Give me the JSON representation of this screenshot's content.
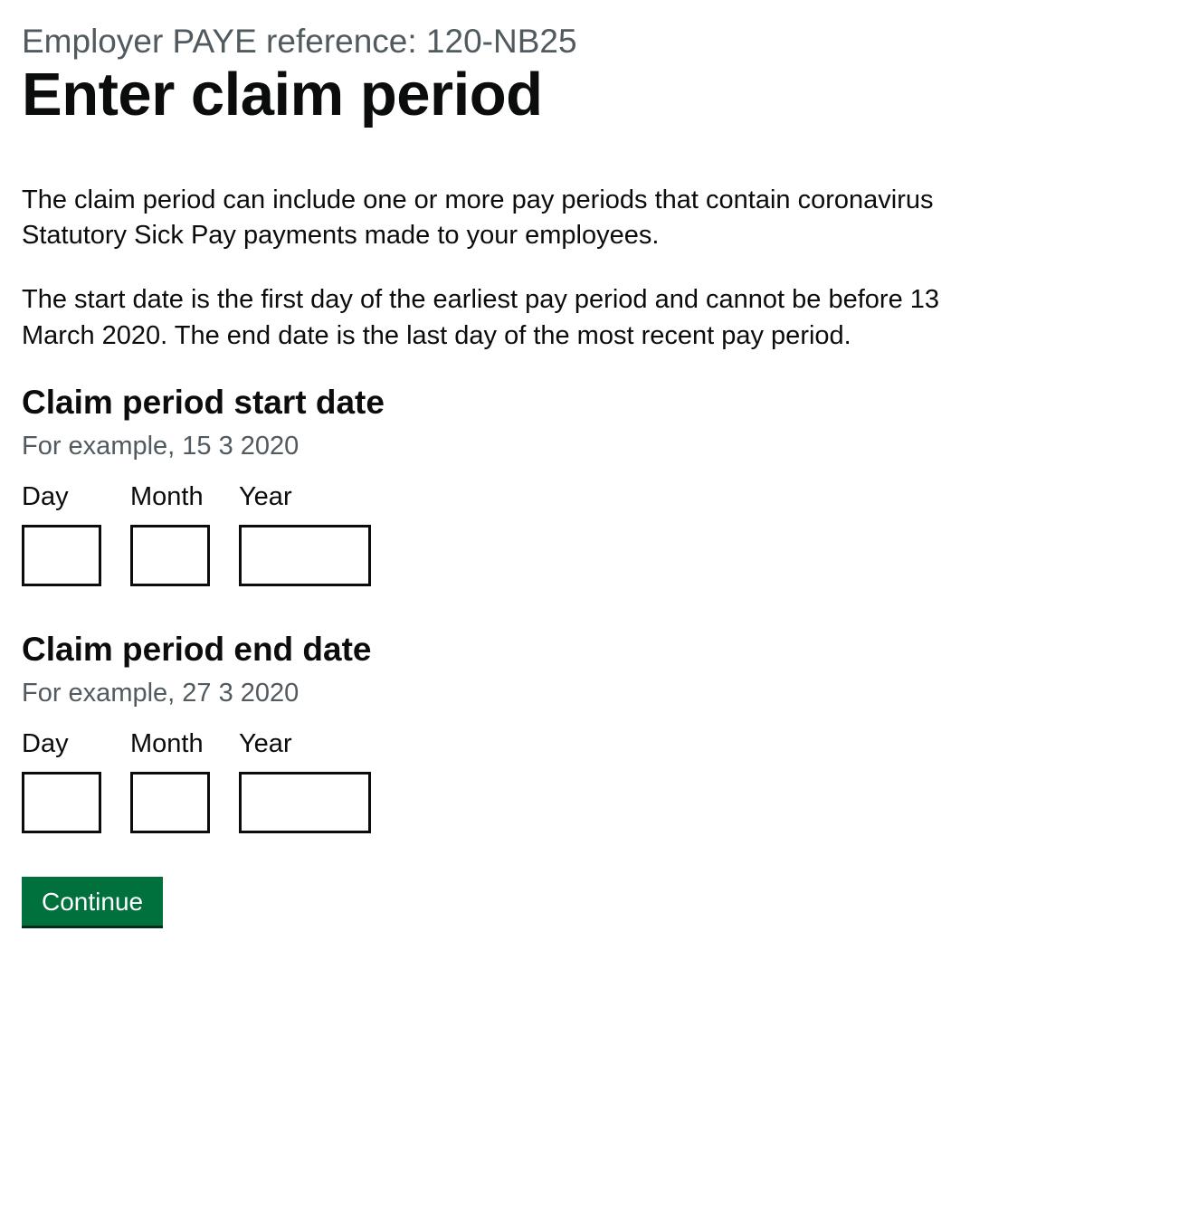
{
  "colors": {
    "text_primary": "#0b0c0c",
    "text_secondary": "#505a5f",
    "button_bg": "#00703c",
    "button_shadow": "#002d18",
    "button_text": "#ffffff",
    "input_border": "#0b0c0c",
    "background": "#ffffff",
    "focus": "#ffdd00"
  },
  "typography": {
    "caption_fontsize": 37,
    "title_fontsize": 67,
    "body_fontsize": 29,
    "fieldset_heading_fontsize": 37,
    "hint_fontsize": 29,
    "label_fontsize": 29,
    "button_fontsize": 28
  },
  "header": {
    "caption": "Employer PAYE reference: 120-NB25",
    "title": "Enter claim period"
  },
  "paragraphs": [
    "The claim period can include one or more pay periods that contain coronavirus Statutory Sick Pay payments made to your employees.",
    "The start date is the first day of the earliest pay period and cannot be before 13 March 2020. The end date is the last day of the most recent pay period."
  ],
  "start_date": {
    "legend": "Claim period start date",
    "hint": "For example, 15 3 2020",
    "day_label": "Day",
    "month_label": "Month",
    "year_label": "Year",
    "day_value": "",
    "month_value": "",
    "year_value": ""
  },
  "end_date": {
    "legend": "Claim period end date",
    "hint": "For example, 27 3 2020",
    "day_label": "Day",
    "month_label": "Month",
    "year_label": "Year",
    "day_value": "",
    "month_value": "",
    "year_value": ""
  },
  "actions": {
    "continue_label": "Continue"
  }
}
